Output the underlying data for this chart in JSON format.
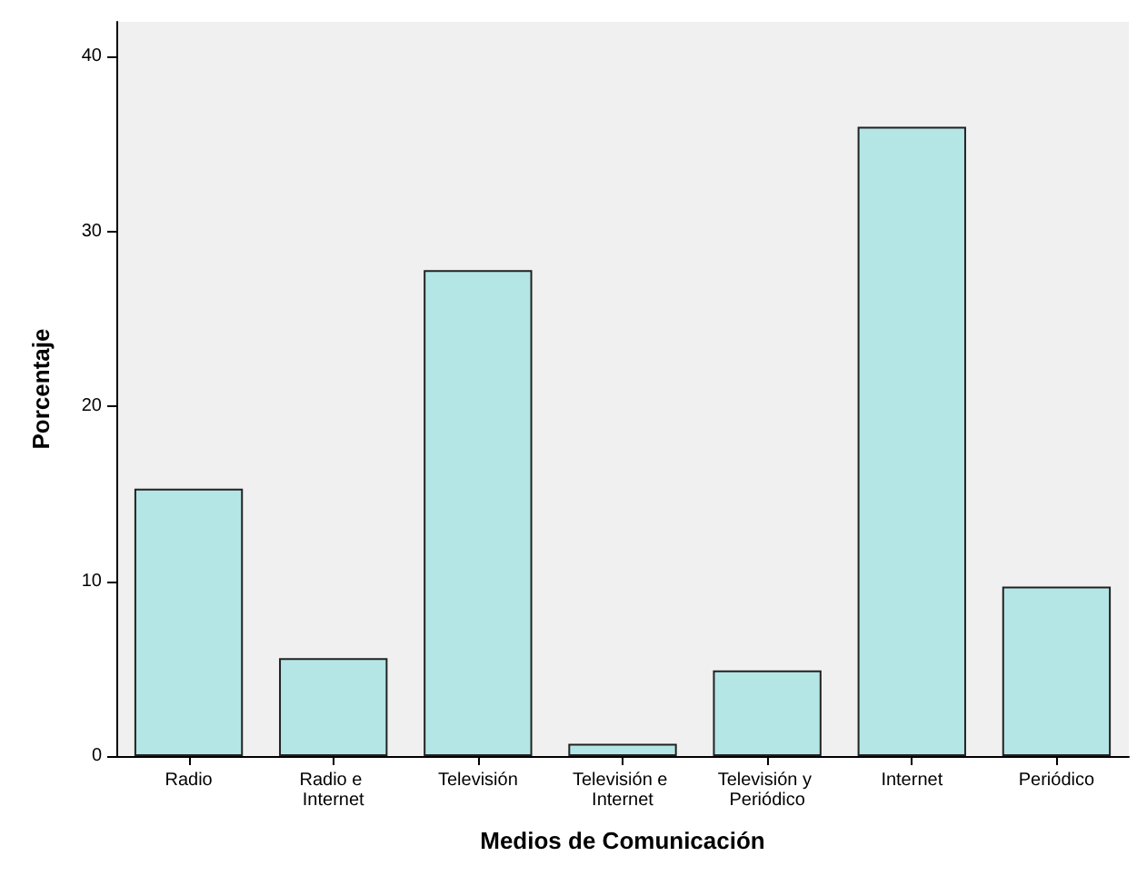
{
  "chart_data": {
    "type": "bar",
    "xlabel": "Medios de Comunicación",
    "ylabel": "Porcentaje",
    "categories": [
      "Radio",
      "Radio e Internet",
      "Televisión",
      "Televisión e Internet",
      "Televisión y Periódico",
      "Internet",
      "Periódico"
    ],
    "values": [
      15.3,
      5.6,
      27.8,
      0.7,
      4.9,
      36.0,
      9.7
    ],
    "color": "#b4e6e6",
    "ylim": [
      0,
      42
    ],
    "yticks": [
      0,
      10,
      20,
      30,
      40
    ],
    "grid": false
  }
}
